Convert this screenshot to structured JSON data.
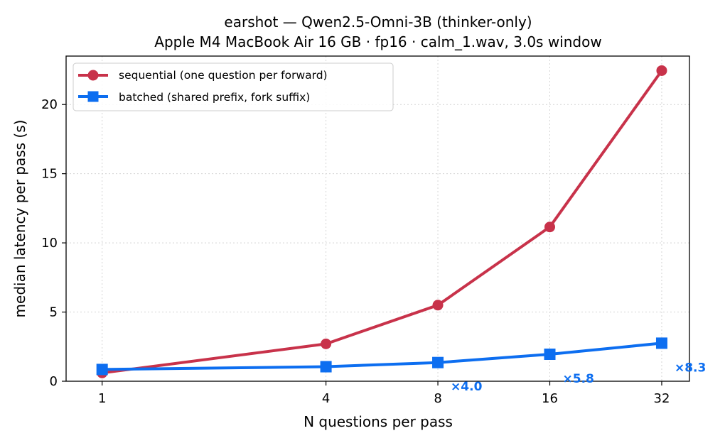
{
  "chart_data": {
    "type": "line",
    "title": "earshot — Qwen2.5-Omni-3B (thinker-only)",
    "subtitle": "Apple M4 MacBook Air 16 GB · fp16 · calm_1.wav, 3.0s window",
    "xlabel": "N questions per pass",
    "ylabel": "median latency per pass (s)",
    "x_scale": "log2",
    "x": [
      1,
      4,
      8,
      16,
      32
    ],
    "x_tick_labels": [
      "1",
      "4",
      "8",
      "16",
      "32"
    ],
    "y_ticks": [
      0,
      5,
      10,
      15,
      20
    ],
    "y_tick_labels": [
      "0",
      "5",
      "10",
      "15",
      "20"
    ],
    "xlim": [
      0.8,
      38
    ],
    "ylim": [
      0,
      23.5
    ],
    "grid": true,
    "legend_position": "top-left",
    "series": [
      {
        "name": "sequential (one question per forward)",
        "values": [
          0.6,
          2.7,
          5.5,
          11.15,
          22.45
        ],
        "color": "#c8324a",
        "marker": "circle"
      },
      {
        "name": "batched (shared prefix, fork suffix)",
        "values": [
          0.85,
          1.05,
          1.35,
          1.95,
          2.75
        ],
        "color": "#0d6ef0",
        "marker": "square"
      }
    ],
    "annotations": [
      {
        "text": "×4.0",
        "x": 8,
        "y": -0.35,
        "color": "#0d6ef0"
      },
      {
        "text": "×5.8",
        "x": 16,
        "y": 0.2,
        "color": "#0d6ef0"
      },
      {
        "text": "×8.3",
        "x": 32,
        "y": 1.0,
        "color": "#0d6ef0"
      }
    ]
  }
}
